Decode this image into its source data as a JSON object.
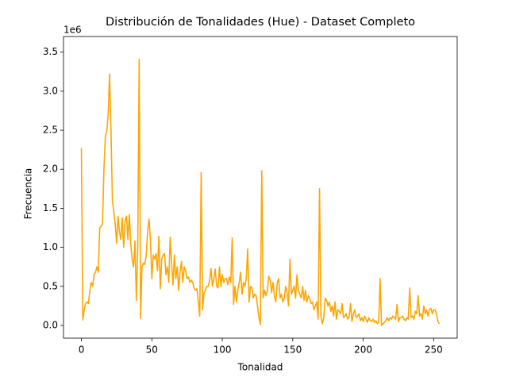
{
  "chart_data": {
    "type": "line",
    "title": "Distribución de Tonalidades (Hue) - Dataset Completo",
    "x_label": "Tonalidad",
    "y_label": "Frecuencia",
    "y_offset_label": "1e6",
    "x": [
      0,
      1,
      2,
      3,
      4,
      5,
      6,
      7,
      8,
      9,
      10,
      11,
      12,
      13,
      14,
      15,
      16,
      17,
      18,
      19,
      20,
      21,
      22,
      23,
      24,
      25,
      26,
      27,
      28,
      29,
      30,
      31,
      32,
      33,
      34,
      35,
      36,
      37,
      38,
      39,
      40,
      41,
      42,
      43,
      44,
      45,
      46,
      47,
      48,
      49,
      50,
      51,
      52,
      53,
      54,
      55,
      56,
      57,
      58,
      59,
      60,
      61,
      62,
      63,
      64,
      65,
      66,
      67,
      68,
      69,
      70,
      71,
      72,
      73,
      74,
      75,
      76,
      77,
      78,
      79,
      80,
      81,
      82,
      83,
      84,
      85,
      86,
      87,
      88,
      89,
      90,
      91,
      92,
      93,
      94,
      95,
      96,
      97,
      98,
      99,
      100,
      101,
      102,
      103,
      104,
      105,
      106,
      107,
      108,
      109,
      110,
      111,
      112,
      113,
      114,
      115,
      116,
      117,
      118,
      119,
      120,
      121,
      122,
      123,
      124,
      125,
      126,
      127,
      128,
      129,
      130,
      131,
      132,
      133,
      134,
      135,
      136,
      137,
      138,
      139,
      140,
      141,
      142,
      143,
      144,
      145,
      146,
      147,
      148,
      149,
      150,
      151,
      152,
      153,
      154,
      155,
      156,
      157,
      158,
      159,
      160,
      161,
      162,
      163,
      164,
      165,
      166,
      167,
      168,
      169,
      170,
      171,
      172,
      173,
      174,
      175,
      176,
      177,
      178,
      179,
      180,
      181,
      182,
      183,
      184,
      185,
      186,
      187,
      188,
      189,
      190,
      191,
      192,
      193,
      194,
      195,
      196,
      197,
      198,
      199,
      200,
      201,
      202,
      203,
      204,
      205,
      206,
      207,
      208,
      209,
      210,
      211,
      212,
      213,
      214,
      215,
      216,
      217,
      218,
      219,
      220,
      221,
      222,
      223,
      224,
      225,
      226,
      227,
      228,
      229,
      230,
      231,
      232,
      233,
      234,
      235,
      236,
      237,
      238,
      239,
      240,
      241,
      242,
      243,
      244,
      245,
      246,
      247,
      248,
      249,
      250,
      251,
      252,
      253,
      254
    ],
    "values": [
      2.27,
      0.07,
      0.2,
      0.28,
      0.3,
      0.28,
      0.45,
      0.55,
      0.5,
      0.65,
      0.68,
      0.75,
      0.68,
      1.25,
      1.27,
      1.3,
      2.0,
      2.42,
      2.48,
      2.7,
      3.22,
      2.5,
      1.6,
      1.45,
      1.3,
      1.05,
      1.4,
      1.2,
      1.1,
      1.38,
      1.0,
      1.35,
      1.4,
      1.1,
      1.42,
      1.05,
      0.85,
      0.75,
      1.08,
      0.32,
      1.0,
      3.41,
      0.09,
      0.75,
      0.8,
      0.78,
      0.9,
      1.2,
      1.36,
      1.1,
      0.6,
      0.9,
      0.85,
      0.92,
      0.7,
      1.14,
      0.47,
      0.85,
      0.9,
      0.92,
      0.65,
      0.75,
      0.55,
      1.13,
      0.8,
      0.52,
      0.9,
      0.6,
      0.75,
      0.45,
      0.68,
      0.82,
      0.55,
      0.75,
      0.7,
      0.6,
      0.62,
      0.55,
      0.58,
      0.55,
      0.48,
      0.45,
      0.47,
      0.3,
      0.12,
      1.96,
      0.2,
      0.42,
      0.45,
      0.5,
      0.5,
      0.58,
      0.73,
      0.5,
      0.6,
      0.72,
      0.5,
      0.48,
      0.75,
      0.5,
      0.65,
      0.55,
      0.6,
      0.6,
      0.52,
      0.62,
      0.55,
      1.12,
      0.27,
      0.5,
      0.3,
      0.45,
      0.55,
      0.68,
      0.4,
      0.55,
      0.5,
      0.6,
      0.98,
      0.3,
      0.5,
      0.48,
      0.35,
      0.4,
      0.38,
      0.25,
      0.1,
      0.01,
      1.98,
      0.35,
      0.45,
      0.38,
      0.45,
      0.63,
      0.58,
      0.42,
      0.55,
      0.38,
      0.3,
      0.55,
      0.6,
      0.35,
      0.4,
      0.3,
      0.35,
      0.5,
      0.42,
      0.25,
      0.85,
      0.4,
      0.45,
      0.5,
      0.35,
      0.65,
      0.45,
      0.4,
      0.35,
      0.5,
      0.32,
      0.45,
      0.3,
      0.38,
      0.35,
      0.28,
      0.3,
      0.2,
      0.25,
      0.3,
      0.08,
      1.75,
      0.12,
      0.02,
      0.1,
      0.35,
      0.32,
      0.25,
      0.3,
      0.18,
      0.25,
      0.12,
      0.3,
      0.08,
      0.2,
      0.18,
      0.15,
      0.28,
      0.1,
      0.12,
      0.15,
      0.08,
      0.1,
      0.28,
      0.05,
      0.15,
      0.2,
      0.1,
      0.12,
      0.15,
      0.06,
      0.1,
      0.05,
      0.12,
      0.08,
      0.04,
      0.1,
      0.06,
      0.05,
      0.08,
      0.04,
      0.06,
      0.02,
      0.04,
      0.6,
      0.0,
      0.02,
      0.04,
      0.06,
      0.1,
      0.06,
      0.1,
      0.08,
      0.12,
      0.1,
      0.08,
      0.27,
      0.05,
      0.1,
      0.1,
      0.12,
      0.08,
      0.06,
      0.1,
      0.08,
      0.48,
      0.1,
      0.12,
      0.08,
      0.18,
      0.15,
      0.38,
      0.12,
      0.15,
      0.08,
      0.25,
      0.15,
      0.2,
      0.12,
      0.2,
      0.22,
      0.15,
      0.2,
      0.2,
      0.15,
      0.05,
      0.02
    ],
    "color": "#ffa500",
    "xlim": [
      -12.7,
      266.7
    ],
    "xticks": [
      0,
      50,
      100,
      150,
      200,
      250
    ],
    "ylim": [
      -0.163,
      3.7
    ],
    "yticks": [
      {
        "value": 0,
        "label": "0.0"
      },
      0.5,
      {
        "value": 1,
        "label": "1.0"
      },
      1.5,
      {
        "value": 2,
        "label": "2.0"
      },
      2.5,
      {
        "value": 3,
        "label": "3.0"
      },
      3.5
    ]
  }
}
